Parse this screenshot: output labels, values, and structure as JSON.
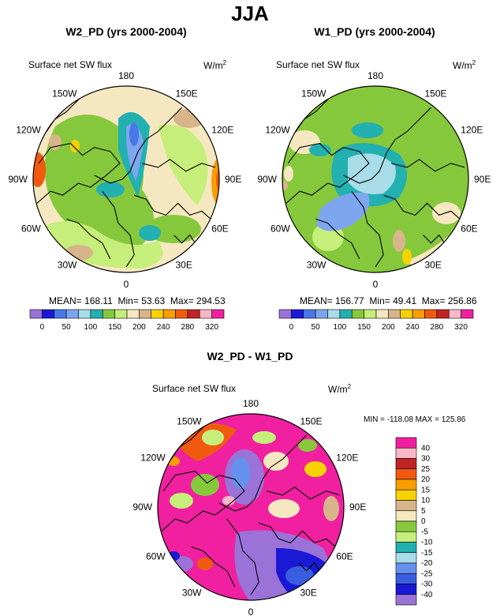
{
  "figure_title": "JJA",
  "palette_abs": [
    "#9a72d8",
    "#1a1ad6",
    "#4a78e8",
    "#7ea6ee",
    "#a8dce8",
    "#22b0b0",
    "#86c83c",
    "#c6ee7a",
    "#f5e8c0",
    "#d8b48a",
    "#f8d200",
    "#f89e00",
    "#f05a10",
    "#c02424",
    "#f8b8c8",
    "#f020a0"
  ],
  "palette_diff": [
    "#9a72d8",
    "#1a1ad6",
    "#3a5ee0",
    "#6690ee",
    "#a8dce8",
    "#22b0b0",
    "#c6ee7a",
    "#86c83c",
    "#f5e8c0",
    "#d8b48a",
    "#f8d200",
    "#f89e00",
    "#f05a10",
    "#c02424",
    "#f8b8c8",
    "#f020a0"
  ],
  "map_labels": {
    "lon180": "180",
    "lon150w": "150W",
    "lon150e": "150E",
    "lon120w": "120W",
    "lon120e": "120E",
    "lon90w": "90W",
    "lon90e": "90E",
    "lon60w": "60W",
    "lon60e": "60E",
    "lon30w": "30W",
    "lon30e": "30E",
    "lon0": "0"
  },
  "chart_data": [
    {
      "type": "heatmap",
      "title": "W2_PD (yrs 2000-2004)",
      "variable": "Surface net SW flux",
      "units_base": "W/m",
      "units_sup": "2",
      "stats": {
        "mean_label": "MEAN=",
        "mean": "168.11",
        "min_label": "Min=",
        "min": "53.63",
        "max_label": "Max=",
        "max": "294.53"
      },
      "colorbar_ticks": [
        "0",
        "50",
        "100",
        "150",
        "200",
        "240",
        "280",
        "320"
      ]
    },
    {
      "type": "heatmap",
      "title": "W1_PD (yrs 2000-2004)",
      "variable": "Surface net SW flux",
      "units_base": "W/m",
      "units_sup": "2",
      "stats": {
        "mean_label": "MEAN=",
        "mean": "156.77",
        "min_label": "Min=",
        "min": "49.41",
        "max_label": "Max=",
        "max": "256.86"
      },
      "colorbar_ticks": [
        "0",
        "50",
        "100",
        "150",
        "200",
        "240",
        "280",
        "320"
      ]
    },
    {
      "type": "heatmap",
      "title": "W2_PD - W1_PD",
      "variable": "Surface net SW flux",
      "units_base": "W/m",
      "units_sup": "2",
      "stats_line": "MIN = -118.08 MAX = 125.86",
      "colorbar_ticks": [
        "40",
        "30",
        "25",
        "20",
        "15",
        "10",
        "5",
        "0",
        "-5",
        "-10",
        "-15",
        "-20",
        "-25",
        "-30",
        "-40"
      ]
    }
  ]
}
